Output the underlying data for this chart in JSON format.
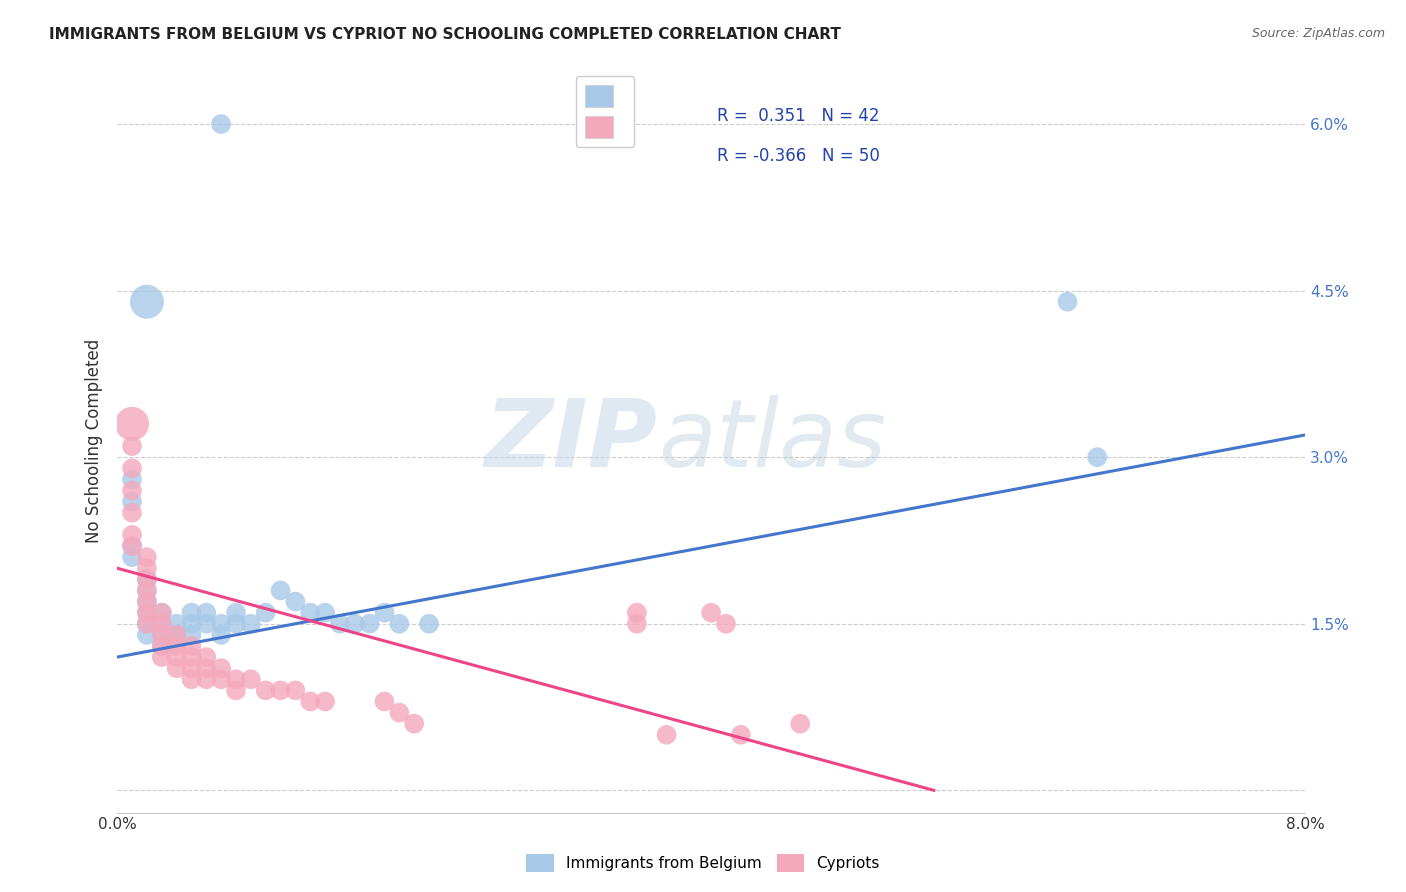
{
  "title": "IMMIGRANTS FROM BELGIUM VS CYPRIOT NO SCHOOLING COMPLETED CORRELATION CHART",
  "source": "Source: ZipAtlas.com",
  "ylabel": "No Schooling Completed",
  "xlim": [
    0.0,
    0.08
  ],
  "ylim": [
    -0.002,
    0.065
  ],
  "background_color": "#ffffff",
  "watermark_zip": "ZIP",
  "watermark_atlas": "atlas",
  "grid_color": "#cccccc",
  "blue_color": "#a8c8e8",
  "pink_color": "#f4a8bc",
  "line_blue_color": "#4477cc",
  "line_pink_color": "#ee4488",
  "blue_line_x": [
    0.0,
    0.08
  ],
  "blue_line_y": [
    0.012,
    0.032
  ],
  "pink_line_x": [
    0.0,
    0.055
  ],
  "pink_line_y": [
    0.02,
    0.0
  ],
  "blue_points": [
    [
      0.007,
      0.06,
      1
    ],
    [
      0.002,
      0.044,
      3
    ],
    [
      0.001,
      0.028,
      1
    ],
    [
      0.001,
      0.026,
      1
    ],
    [
      0.001,
      0.022,
      1
    ],
    [
      0.001,
      0.021,
      1
    ],
    [
      0.002,
      0.019,
      1
    ],
    [
      0.002,
      0.018,
      1
    ],
    [
      0.002,
      0.017,
      1
    ],
    [
      0.002,
      0.016,
      1
    ],
    [
      0.002,
      0.015,
      1
    ],
    [
      0.002,
      0.014,
      1
    ],
    [
      0.003,
      0.016,
      1
    ],
    [
      0.003,
      0.015,
      1
    ],
    [
      0.003,
      0.014,
      1
    ],
    [
      0.003,
      0.013,
      1
    ],
    [
      0.004,
      0.015,
      1
    ],
    [
      0.004,
      0.014,
      1
    ],
    [
      0.004,
      0.014,
      1
    ],
    [
      0.005,
      0.016,
      1
    ],
    [
      0.005,
      0.015,
      1
    ],
    [
      0.005,
      0.014,
      1
    ],
    [
      0.006,
      0.016,
      1
    ],
    [
      0.006,
      0.015,
      1
    ],
    [
      0.007,
      0.015,
      1
    ],
    [
      0.007,
      0.014,
      1
    ],
    [
      0.008,
      0.016,
      1
    ],
    [
      0.008,
      0.015,
      1
    ],
    [
      0.009,
      0.015,
      1
    ],
    [
      0.01,
      0.016,
      1
    ],
    [
      0.011,
      0.018,
      1
    ],
    [
      0.012,
      0.017,
      1
    ],
    [
      0.013,
      0.016,
      1
    ],
    [
      0.014,
      0.016,
      1
    ],
    [
      0.015,
      0.015,
      1
    ],
    [
      0.016,
      0.015,
      1
    ],
    [
      0.017,
      0.015,
      1
    ],
    [
      0.018,
      0.016,
      1
    ],
    [
      0.019,
      0.015,
      1
    ],
    [
      0.021,
      0.015,
      1
    ],
    [
      0.064,
      0.044,
      1
    ],
    [
      0.066,
      0.03,
      1
    ]
  ],
  "pink_points": [
    [
      0.001,
      0.033,
      3
    ],
    [
      0.001,
      0.031,
      1
    ],
    [
      0.001,
      0.029,
      1
    ],
    [
      0.001,
      0.027,
      1
    ],
    [
      0.001,
      0.025,
      1
    ],
    [
      0.001,
      0.023,
      1
    ],
    [
      0.001,
      0.022,
      1
    ],
    [
      0.002,
      0.021,
      1
    ],
    [
      0.002,
      0.02,
      1
    ],
    [
      0.002,
      0.019,
      1
    ],
    [
      0.002,
      0.018,
      1
    ],
    [
      0.002,
      0.017,
      1
    ],
    [
      0.002,
      0.016,
      1
    ],
    [
      0.002,
      0.015,
      1
    ],
    [
      0.003,
      0.016,
      1
    ],
    [
      0.003,
      0.015,
      1
    ],
    [
      0.003,
      0.014,
      1
    ],
    [
      0.003,
      0.013,
      1
    ],
    [
      0.003,
      0.012,
      1
    ],
    [
      0.004,
      0.014,
      1
    ],
    [
      0.004,
      0.013,
      1
    ],
    [
      0.004,
      0.012,
      1
    ],
    [
      0.004,
      0.011,
      1
    ],
    [
      0.005,
      0.013,
      1
    ],
    [
      0.005,
      0.012,
      1
    ],
    [
      0.005,
      0.011,
      1
    ],
    [
      0.005,
      0.01,
      1
    ],
    [
      0.006,
      0.012,
      1
    ],
    [
      0.006,
      0.011,
      1
    ],
    [
      0.006,
      0.01,
      1
    ],
    [
      0.007,
      0.011,
      1
    ],
    [
      0.007,
      0.01,
      1
    ],
    [
      0.008,
      0.01,
      1
    ],
    [
      0.008,
      0.009,
      1
    ],
    [
      0.009,
      0.01,
      1
    ],
    [
      0.01,
      0.009,
      1
    ],
    [
      0.011,
      0.009,
      1
    ],
    [
      0.012,
      0.009,
      1
    ],
    [
      0.013,
      0.008,
      1
    ],
    [
      0.014,
      0.008,
      1
    ],
    [
      0.018,
      0.008,
      1
    ],
    [
      0.019,
      0.007,
      1
    ],
    [
      0.02,
      0.006,
      1
    ],
    [
      0.035,
      0.016,
      1
    ],
    [
      0.035,
      0.015,
      1
    ],
    [
      0.037,
      0.005,
      1
    ],
    [
      0.04,
      0.016,
      1
    ],
    [
      0.041,
      0.015,
      1
    ],
    [
      0.042,
      0.005,
      1
    ],
    [
      0.046,
      0.006,
      1
    ]
  ],
  "legend_r1": "R =  0.351",
  "legend_n1": "N = 42",
  "legend_r2": "R = -0.366",
  "legend_n2": "N = 50",
  "dot_size": 200
}
